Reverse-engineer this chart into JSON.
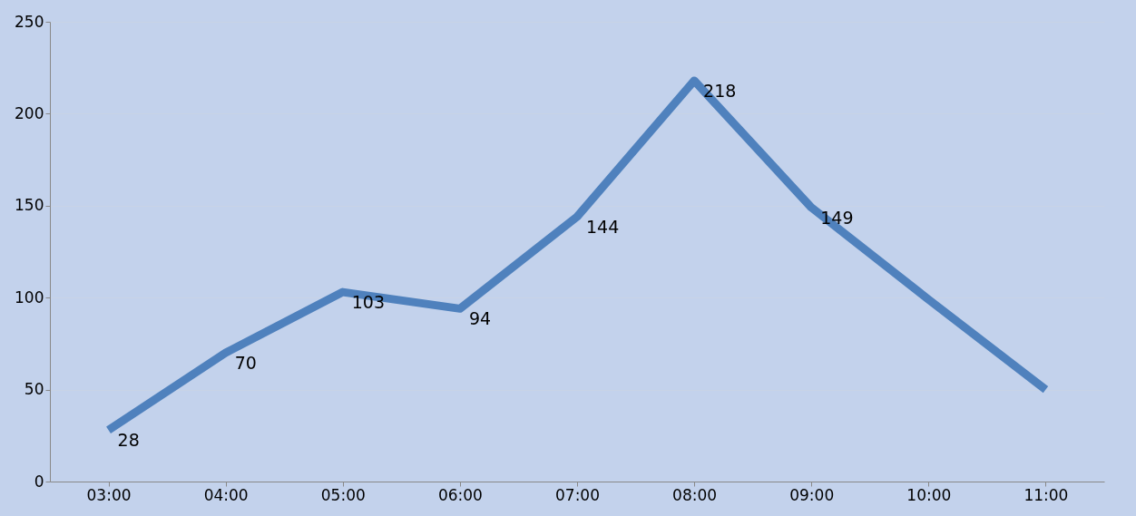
{
  "chart_data": {
    "type": "line",
    "categories": [
      "03:00",
      "04:00",
      "05:00",
      "06:00",
      "07:00",
      "08:00",
      "09:00",
      "10:00",
      "11:00"
    ],
    "series": [
      {
        "color": "#4f81bd",
        "values": [
          28,
          70,
          103,
          94,
          144,
          218,
          149,
          99,
          50
        ],
        "value_labels": [
          "28",
          "70",
          "103",
          "94",
          "144",
          "218",
          "149",
          null,
          null
        ]
      }
    ],
    "ylim": [
      0,
      250
    ],
    "yticks": [
      0,
      50,
      100,
      150,
      200,
      250
    ],
    "grid": "y",
    "marker": "none",
    "line_style": "solid"
  }
}
